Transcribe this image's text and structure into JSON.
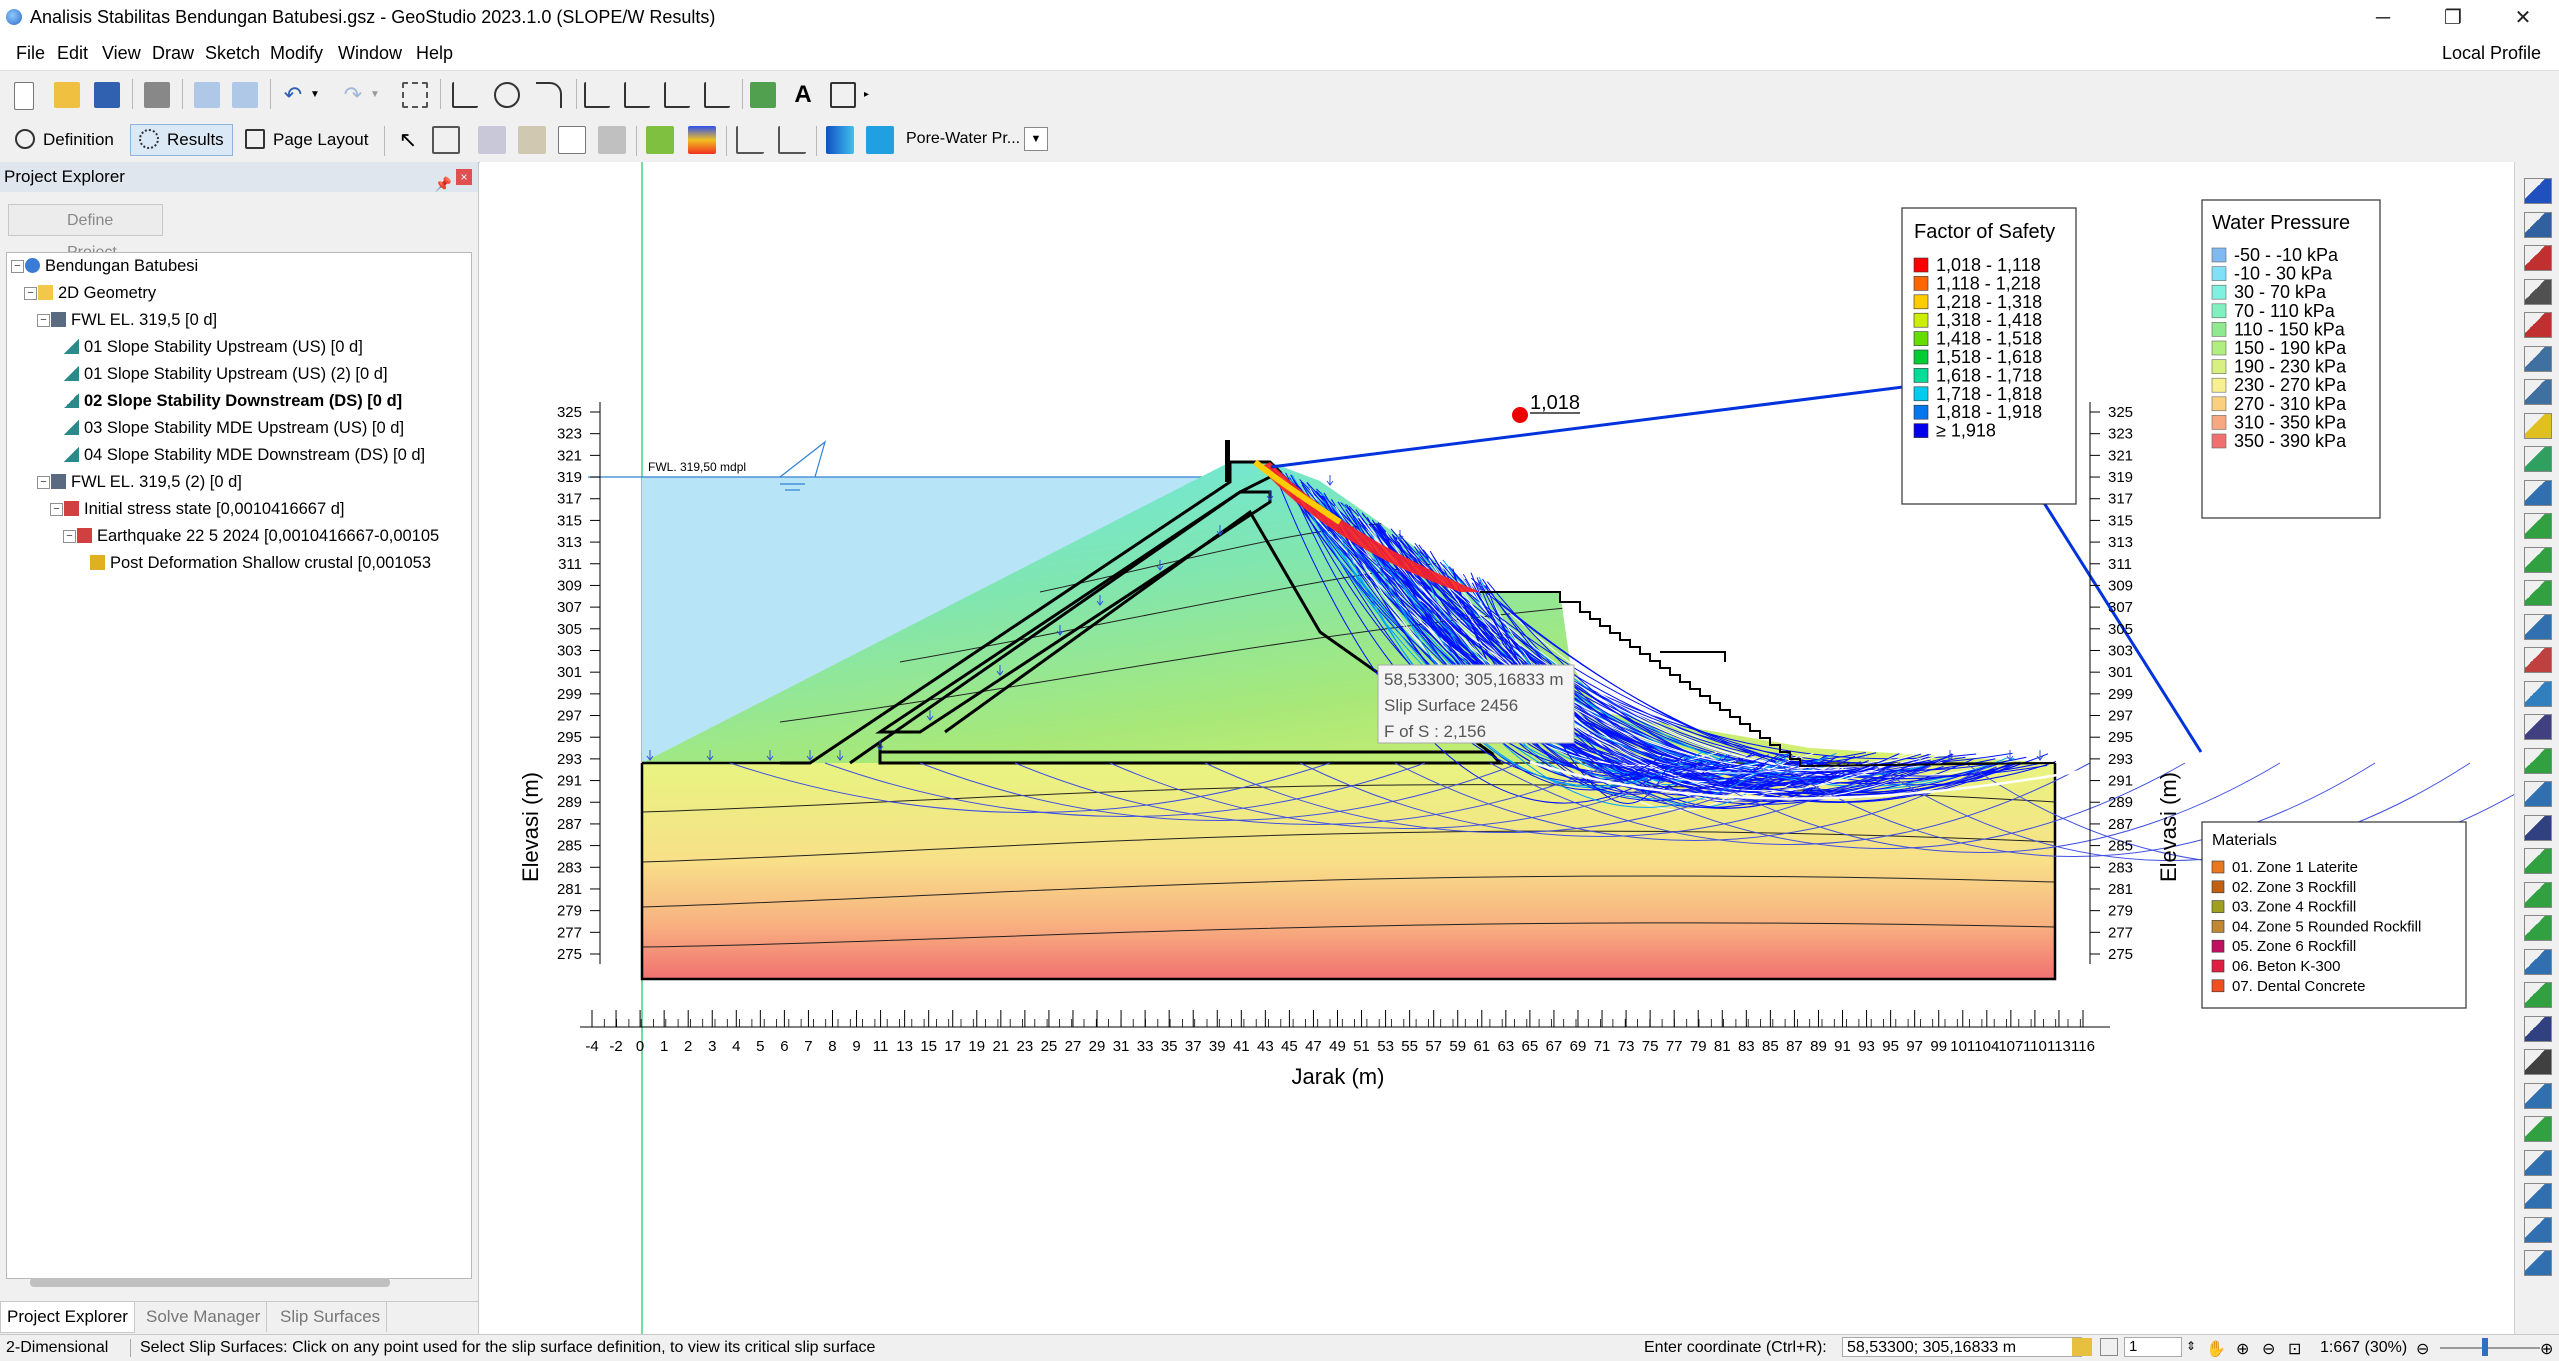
{
  "window": {
    "title": "Analisis Stabilitas Bendungan Batubesi.gsz - GeoStudio 2023.1.0 (SLOPE/W Results)",
    "minimize_glyph": "─",
    "maximize_glyph": "❐",
    "close_glyph": "✕"
  },
  "menu": {
    "items": [
      "File",
      "Edit",
      "View",
      "Draw",
      "Sketch",
      "Modify",
      "Window",
      "Help"
    ],
    "profile": "Local Profile"
  },
  "modes": {
    "definition": "Definition",
    "results": "Results",
    "page_layout": "Page Layout",
    "view_dropdown": "Pore-Water Pr..."
  },
  "explorer": {
    "title": "Project Explorer",
    "define_project": "Define Project",
    "tree": [
      {
        "label": "Bendungan Batubesi",
        "level": 0,
        "icon": "globe-icon",
        "expander": "−",
        "bold": false
      },
      {
        "label": "2D Geometry",
        "level": 1,
        "icon": "folder-icon",
        "expander": "−",
        "bold": false
      },
      {
        "label": "FWL EL. 319,5 [0 d]",
        "level": 2,
        "icon": "water-level-icon",
        "expander": "−",
        "bold": false
      },
      {
        "label": "01 Slope Stability Upstream (US) [0 d]",
        "level": 3,
        "icon": "slope-analysis-icon",
        "expander": "",
        "bold": false
      },
      {
        "label": "01 Slope Stability Upstream (US) (2) [0 d]",
        "level": 3,
        "icon": "slope-analysis-icon",
        "expander": "",
        "bold": false
      },
      {
        "label": "02 Slope Stability Downstream (DS) [0 d]",
        "level": 3,
        "icon": "slope-analysis-icon",
        "expander": "",
        "bold": true
      },
      {
        "label": "03 Slope Stability MDE Upstream (US) [0 d]",
        "level": 3,
        "icon": "slope-analysis-icon",
        "expander": "",
        "bold": false
      },
      {
        "label": "04 Slope Stability MDE Downstream (DS) [0 d]",
        "level": 3,
        "icon": "slope-analysis-icon",
        "expander": "",
        "bold": false
      },
      {
        "label": "FWL EL. 319,5 (2) [0 d]",
        "level": 2,
        "icon": "water-level-icon",
        "expander": "−",
        "bold": false
      },
      {
        "label": "Initial stress state [0,0010416667 d]",
        "level": 3,
        "icon": "stress-analysis-icon",
        "expander": "−",
        "bold": false
      },
      {
        "label": "Earthquake 22 5 2024 [0,0010416667-0,00105",
        "level": 4,
        "icon": "stress-analysis-icon",
        "expander": "−",
        "bold": false
      },
      {
        "label": "Post Deformation Shallow crustal [0,001053",
        "level": 5,
        "icon": "deformation-icon",
        "expander": "",
        "bold": false
      }
    ],
    "tabs": [
      "Project Explorer",
      "Solve Manager",
      "Slip Surfaces"
    ]
  },
  "plot": {
    "fwl_label": "FWL. 319,50 mdpl",
    "critical_fos": "1,018",
    "y_axis_title": "Elevasi (m)",
    "x_axis_title": "Jarak (m)",
    "y_ticks": [
      275,
      277,
      279,
      281,
      283,
      285,
      287,
      289,
      291,
      293,
      295,
      297,
      299,
      301,
      303,
      305,
      307,
      309,
      311,
      313,
      315,
      317,
      319,
      321,
      323,
      325
    ],
    "x_ticks": [
      "-4",
      "-2",
      "0",
      "1",
      "2",
      "3",
      "4",
      "5",
      "6",
      "7",
      "8",
      "9",
      "11",
      "13",
      "15",
      "17",
      "19",
      "21",
      "23",
      "25",
      "27",
      "29",
      "31",
      "33",
      "35",
      "37",
      "39",
      "41",
      "43",
      "45",
      "47",
      "49",
      "51",
      "53",
      "55",
      "57",
      "59",
      "61",
      "63",
      "65",
      "67",
      "69",
      "71",
      "73",
      "75",
      "77",
      "79",
      "81",
      "83",
      "85",
      "87",
      "89",
      "91",
      "93",
      "95",
      "97",
      "99",
      "101",
      "104",
      "107",
      "110",
      "113",
      "116"
    ],
    "tooltip": {
      "coords": "58,53300; 305,16833 m",
      "slip": "Slip Surface 2456",
      "fos": "F of S : 2,156"
    }
  },
  "fos_legend": {
    "title": "Factor of Safety",
    "items": [
      {
        "label": "1,018 - 1,118",
        "color": "#ff0000"
      },
      {
        "label": "1,118 - 1,218",
        "color": "#ff6600"
      },
      {
        "label": "1,218 - 1,318",
        "color": "#ffcc00"
      },
      {
        "label": "1,318 - 1,418",
        "color": "#ccee00"
      },
      {
        "label": "1,418 - 1,518",
        "color": "#66dd00"
      },
      {
        "label": "1,518 - 1,618",
        "color": "#00cc33"
      },
      {
        "label": "1,618 - 1,718",
        "color": "#00dd99"
      },
      {
        "label": "1,718 - 1,818",
        "color": "#00ccee"
      },
      {
        "label": "1,818 - 1,918",
        "color": "#0077ee"
      },
      {
        "label": "≥ 1,918",
        "color": "#0000ee"
      }
    ]
  },
  "wp_legend": {
    "title": "Water Pressure",
    "items": [
      {
        "label": "-50 - -10 kPa",
        "color": "#80b8f0"
      },
      {
        "label": "-10 - 30 kPa",
        "color": "#80e0f8"
      },
      {
        "label": "30 - 70 kPa",
        "color": "#80f0e0"
      },
      {
        "label": "70 - 110 kPa",
        "color": "#80f0c0"
      },
      {
        "label": "110 - 150 kPa",
        "color": "#90e890"
      },
      {
        "label": "150 - 190 kPa",
        "color": "#b0ee80"
      },
      {
        "label": "190 - 230 kPa",
        "color": "#d8f080"
      },
      {
        "label": "230 - 270 kPa",
        "color": "#f8f090"
      },
      {
        "label": "270 - 310 kPa",
        "color": "#f8d080"
      },
      {
        "label": "310 - 350 kPa",
        "color": "#f8a880"
      },
      {
        "label": "350 - 390 kPa",
        "color": "#f07070"
      }
    ]
  },
  "materials_legend": {
    "title": "Materials",
    "items": [
      {
        "label": "01. Zone 1 Laterite",
        "color": "#e87820"
      },
      {
        "label": "02. Zone 3 Rockfill",
        "color": "#c06010"
      },
      {
        "label": "03. Zone 4 Rockfill",
        "color": "#a0a020"
      },
      {
        "label": "04. Zone 5 Rounded Rockfill",
        "color": "#c08830"
      },
      {
        "label": "05. Zone 6 Rockfill",
        "color": "#c01060"
      },
      {
        "label": "06. Beton K-300",
        "color": "#e02040"
      },
      {
        "label": "07. Dental Concrete",
        "color": "#f05020"
      }
    ]
  },
  "status": {
    "mode": "2-Dimensional",
    "hint": "Select Slip Surfaces:  Click on any point used for the slip surface definition, to view its critical slip surface",
    "coord_label": "Enter coordinate (Ctrl+R):",
    "coord_value": "58,53300; 305,16833 m",
    "page": "1",
    "zoom": "1:667 (30%)"
  }
}
